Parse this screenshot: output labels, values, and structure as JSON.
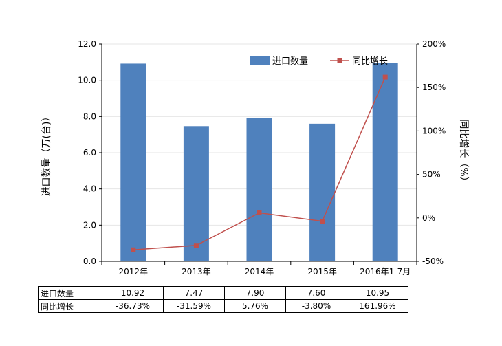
{
  "chart_data": {
    "type": "bar",
    "categories": [
      "2012年",
      "2013年",
      "2014年",
      "2015年",
      "2016年1-7月"
    ],
    "series": [
      {
        "name": "进口数量",
        "type": "bar",
        "axis": "left",
        "values": [
          10.92,
          7.47,
          7.9,
          7.6,
          10.95
        ],
        "color": "#4f81bd"
      },
      {
        "name": "同比增长",
        "type": "line",
        "axis": "right",
        "values": [
          -36.73,
          -31.59,
          5.76,
          -3.8,
          161.96
        ],
        "color": "#c0504d"
      }
    ],
    "y_left": {
      "label": "进口数量（万(台)）",
      "range": [
        0,
        12
      ],
      "ticks": [
        0,
        2,
        4,
        6,
        8,
        10,
        12
      ],
      "tick_labels": [
        "0.0",
        "2.0",
        "4.0",
        "6.0",
        "8.0",
        "10.0",
        "12.0"
      ]
    },
    "y_right": {
      "label": "同比增长（%）",
      "range": [
        -50,
        200
      ],
      "ticks": [
        -50,
        0,
        50,
        100,
        150,
        200
      ],
      "tick_labels": [
        "-50%",
        "0%",
        "50%",
        "100%",
        "150%",
        "200%"
      ]
    },
    "legend": {
      "position": "top-right"
    },
    "grid": true
  },
  "table": {
    "rows": [
      {
        "label": "进口数量",
        "cells": [
          "10.92",
          "7.47",
          "7.90",
          "7.60",
          "10.95"
        ]
      },
      {
        "label": "同比增长",
        "cells": [
          "-36.73%",
          "-31.59%",
          "5.76%",
          "-3.80%",
          "161.96%"
        ]
      }
    ]
  }
}
